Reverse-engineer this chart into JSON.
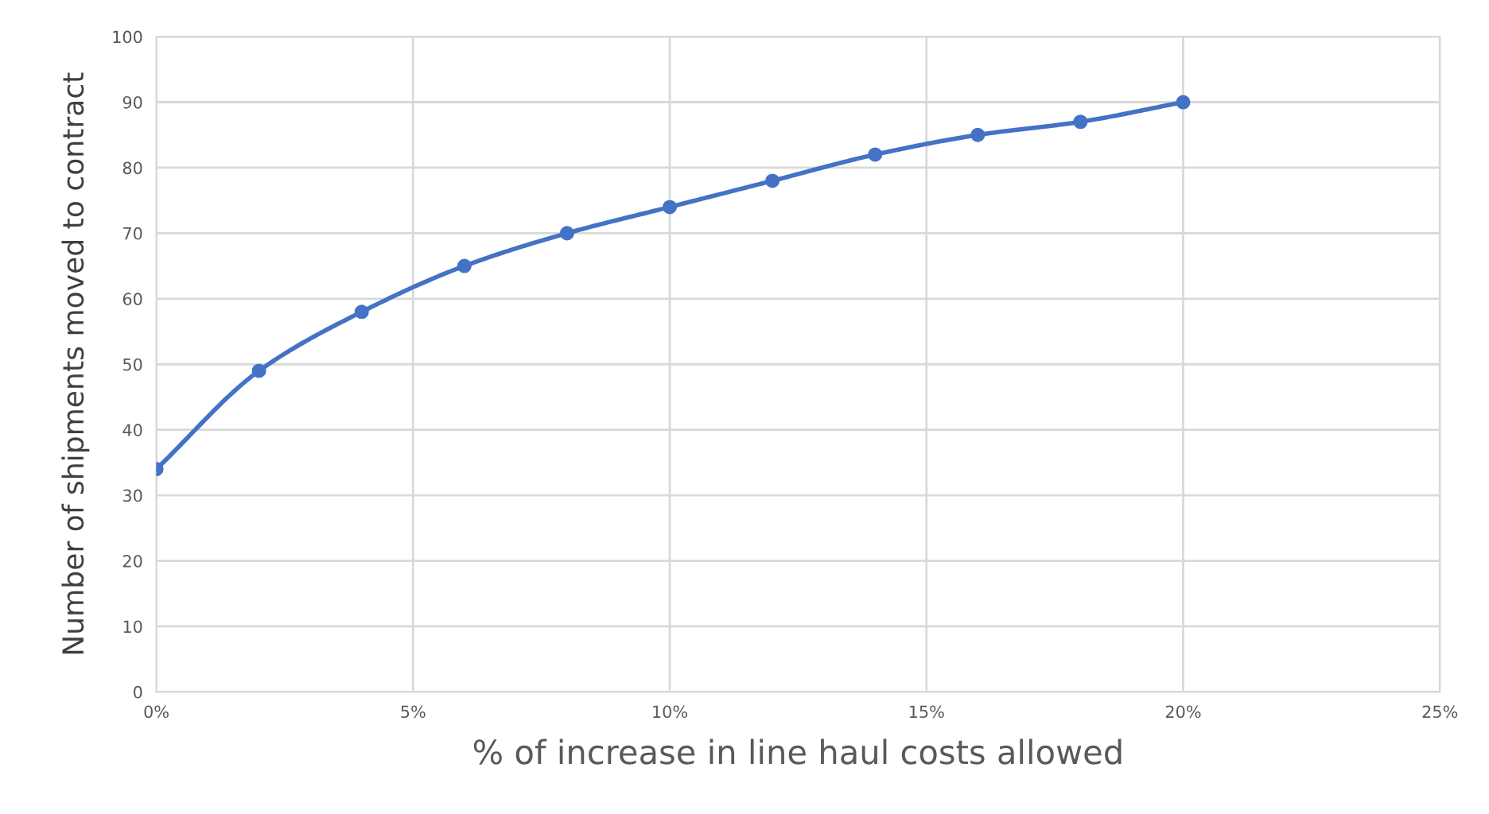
{
  "chart_data": {
    "type": "line",
    "xlabel": "% of increase in line haul costs allowed",
    "ylabel": "Number of shipments moved to contract",
    "x": [
      0,
      2,
      4,
      6,
      8,
      10,
      12,
      14,
      16,
      18,
      20
    ],
    "series": [
      {
        "color": "#4472c4",
        "values": [
          34,
          49,
          58,
          65,
          70,
          74,
          78,
          82,
          85,
          87,
          90
        ]
      }
    ],
    "xlim": [
      0,
      25
    ],
    "xticks": [
      {
        "value": 0,
        "label": "0%"
      },
      {
        "value": 5,
        "label": "5%"
      },
      {
        "value": 10,
        "label": "10%"
      },
      {
        "value": 15,
        "label": "15%"
      },
      {
        "value": 20,
        "label": "20%"
      },
      {
        "value": 25,
        "label": "25%"
      }
    ],
    "ylim": [
      0,
      100
    ],
    "yticks": [
      0,
      10,
      20,
      30,
      40,
      50,
      60,
      70,
      80,
      90,
      100
    ],
    "grid": true,
    "marker": "circle",
    "line_style": "solid"
  }
}
